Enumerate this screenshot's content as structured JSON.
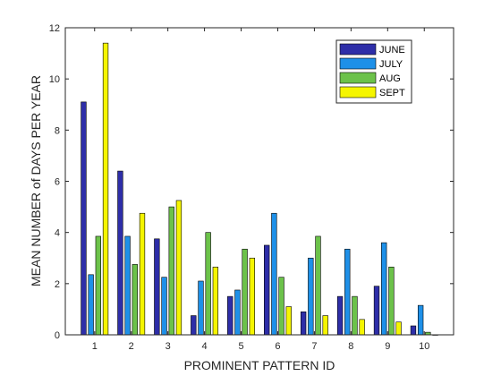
{
  "chart_data": {
    "type": "bar",
    "title": "",
    "xlabel": "PROMINENT PATTERN ID",
    "ylabel": "MEAN NUMBER of DAYS PER YEAR",
    "categories": [
      "1",
      "2",
      "3",
      "4",
      "5",
      "6",
      "7",
      "8",
      "9",
      "10"
    ],
    "xlim": [
      0.2,
      10.8
    ],
    "ylim": [
      0,
      12
    ],
    "yticks": [
      "0",
      "2",
      "4",
      "6",
      "8",
      "10",
      "12"
    ],
    "grid": false,
    "legend_position": "top-right",
    "series": [
      {
        "name": "JUNE",
        "color": "#2e2ea8",
        "values": [
          9.1,
          6.4,
          3.75,
          0.75,
          1.5,
          3.5,
          0.9,
          1.5,
          1.9,
          0.35
        ]
      },
      {
        "name": "JULY",
        "color": "#1e90e8",
        "values": [
          2.35,
          3.85,
          2.25,
          2.1,
          1.75,
          4.75,
          3.0,
          3.35,
          3.6,
          1.15
        ]
      },
      {
        "name": "AUG",
        "color": "#6cc24a",
        "values": [
          3.85,
          2.75,
          5.0,
          4.0,
          3.35,
          2.25,
          3.85,
          1.5,
          2.65,
          0.1
        ]
      },
      {
        "name": "SEPT",
        "color": "#f5f500",
        "values": [
          11.4,
          4.75,
          5.25,
          2.65,
          3.0,
          1.1,
          0.75,
          0.6,
          0.5,
          0.0
        ]
      }
    ]
  }
}
